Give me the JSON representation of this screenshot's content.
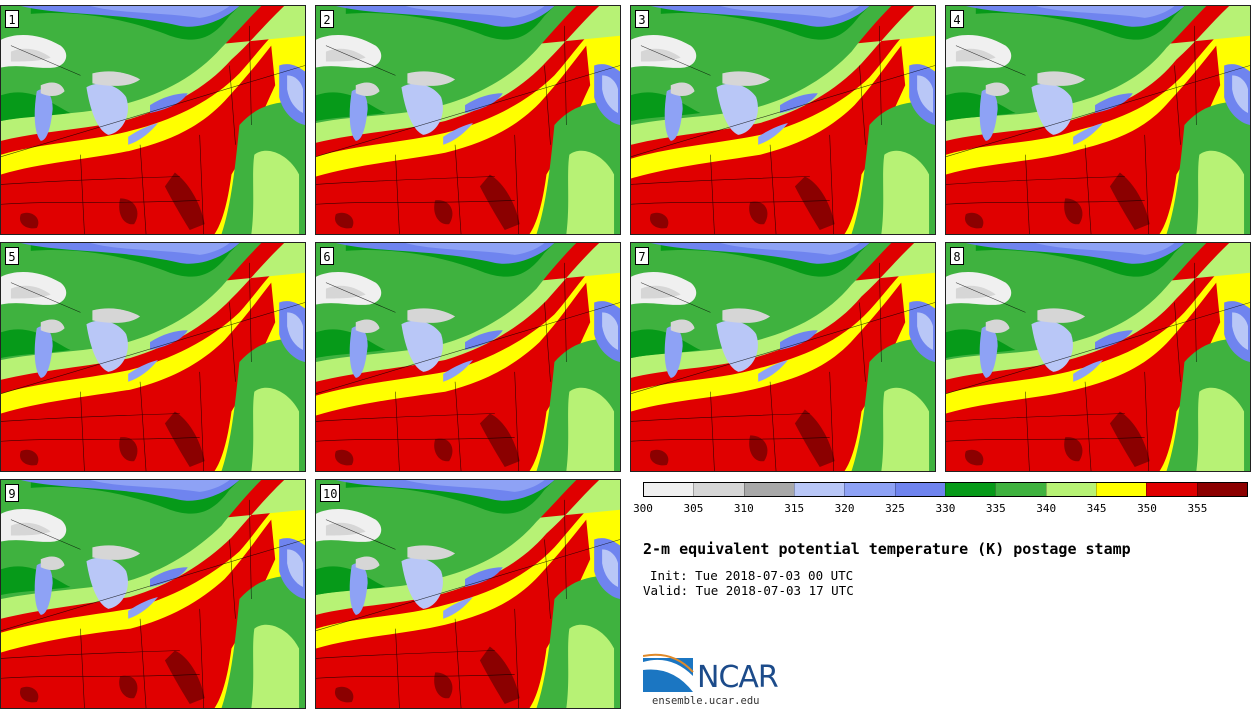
{
  "panels": [
    {
      "label": "1"
    },
    {
      "label": "2"
    },
    {
      "label": "3"
    },
    {
      "label": "4"
    },
    {
      "label": "5"
    },
    {
      "label": "6"
    },
    {
      "label": "7"
    },
    {
      "label": "8"
    },
    {
      "label": "9"
    },
    {
      "label": "10"
    }
  ],
  "colorbar": {
    "colors": [
      "#f0f0f0",
      "#d6d6d6",
      "#a8a8a8",
      "#b9c7f7",
      "#8ea2f5",
      "#6f84ef",
      "#069a19",
      "#3fb23f",
      "#b7f275",
      "#ffff00",
      "#e00000",
      "#8b0000"
    ],
    "ticks": [
      "300",
      "305",
      "310",
      "315",
      "320",
      "325",
      "330",
      "335",
      "340",
      "345",
      "350",
      "355"
    ]
  },
  "title": "2-m equivalent potential temperature (K) postage stamp",
  "init": "Init: Tue 2018-07-03 00 UTC",
  "valid": "Valid: Tue 2018-07-03 17 UTC",
  "logo": {
    "word": "NCAR",
    "url": "ensemble.ucar.edu"
  }
}
